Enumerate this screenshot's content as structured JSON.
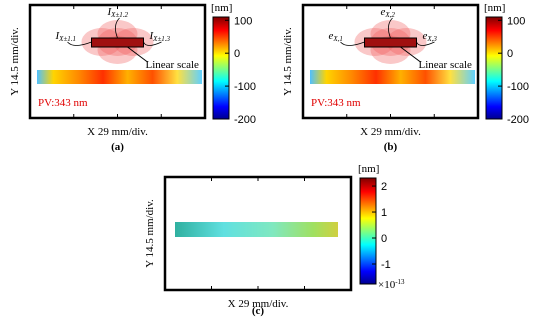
{
  "panels": [
    {
      "caption": "(a)",
      "y_label": "Y 14.5 mm/div.",
      "x_label": "X 29 mm/div.",
      "annotation": "PV:343 nm",
      "scale_label": "Linear scale",
      "probe_labels": [
        {
          "main": "I",
          "sub": "X±1.1"
        },
        {
          "main": "I",
          "sub": "X±1.2"
        },
        {
          "main": "I",
          "sub": "X±1.3"
        }
      ],
      "colorbar": {
        "unit": "[nm]",
        "lim": [
          -200,
          110
        ],
        "ticks": [
          100,
          0,
          -100,
          -200
        ]
      }
    },
    {
      "caption": "(b)",
      "y_label": "Y 14.5 mm/div.",
      "x_label": "X 29 mm/div.",
      "annotation": "PV:343 nm",
      "scale_label": "Linear scale",
      "probe_labels": [
        {
          "main": "e",
          "sub": "X,1"
        },
        {
          "main": "e",
          "sub": "X,2"
        },
        {
          "main": "e",
          "sub": "X,3"
        }
      ],
      "colorbar": {
        "unit": "[nm]",
        "lim": [
          -200,
          110
        ],
        "ticks": [
          100,
          0,
          -100,
          -200
        ]
      }
    },
    {
      "caption": "(c)",
      "y_label": "Y 14.5 mm/div.",
      "x_label": "X 29 mm/div.",
      "colorbar": {
        "unit": "[nm]",
        "lim": [
          -1.77,
          2.31
        ],
        "ticks": [
          2,
          1,
          0,
          -1
        ],
        "exponent": {
          "main": "×10",
          "sup": "-13"
        }
      }
    }
  ]
}
